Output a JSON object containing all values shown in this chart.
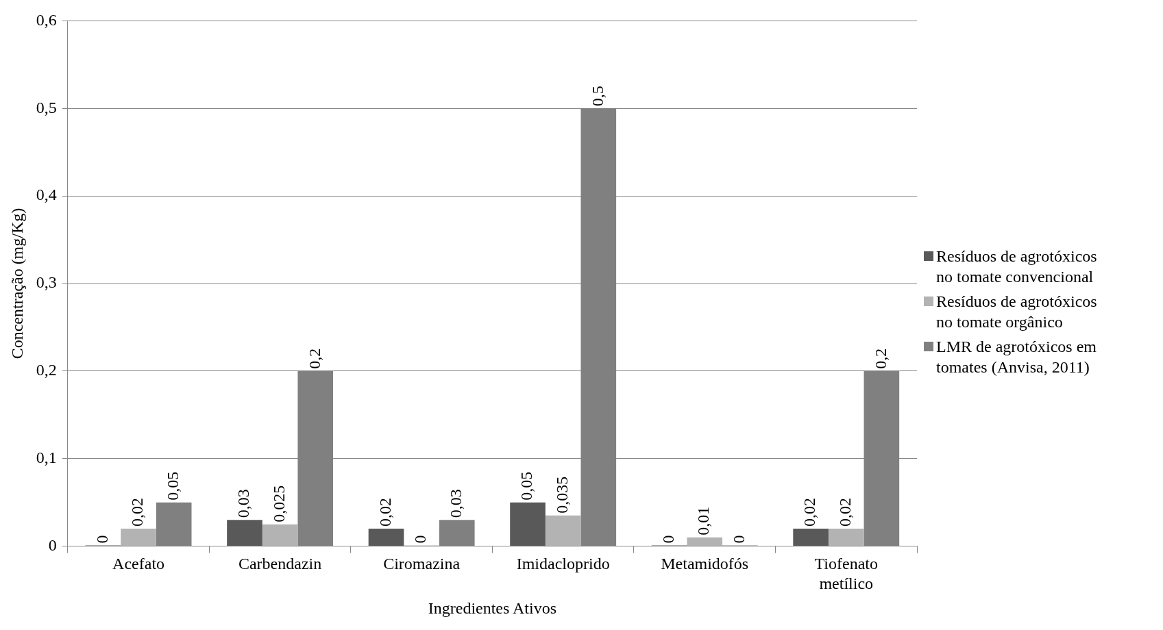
{
  "chart_data": {
    "type": "bar",
    "xlabel": "Ingredientes Ativos",
    "ylabel": "Concentração (mg/Kg)",
    "categories": [
      "Acefato",
      "Carbendazin",
      "Ciromazina",
      "Imidacloprido",
      "Metamidofós",
      "Tiofenato metílico"
    ],
    "series": [
      {
        "name": "Resíduos de agrotóxicos no tomate convencional",
        "color": "#595959",
        "values": [
          0,
          0.03,
          0.02,
          0.05,
          0,
          0.02
        ],
        "value_labels": [
          "0",
          "0,03",
          "0,02",
          "0,05",
          "0",
          "0,02"
        ]
      },
      {
        "name": "Resíduos de agrotóxicos no tomate orgânico",
        "color": "#b3b3b3",
        "values": [
          0.02,
          0.025,
          0,
          0.035,
          0.01,
          0.02
        ],
        "value_labels": [
          "0,02",
          "0,025",
          "0",
          "0,035",
          "0,01",
          "0,02"
        ]
      },
      {
        "name": "LMR de agrotóxicos em tomates (Anvisa, 2011)",
        "color": "#808080",
        "values": [
          0.05,
          0.2,
          0.03,
          0.5,
          0,
          0.2
        ],
        "value_labels": [
          "0,05",
          "0,2",
          "0,03",
          "0,5",
          "0",
          "0,2"
        ]
      }
    ],
    "ylim": [
      0,
      0.6
    ],
    "yticks": [
      {
        "value": 0,
        "label": "0"
      },
      {
        "value": 0.1,
        "label": "0,1"
      },
      {
        "value": 0.2,
        "label": "0,2"
      },
      {
        "value": 0.3,
        "label": "0,3"
      },
      {
        "value": 0.4,
        "label": "0,4"
      },
      {
        "value": 0.5,
        "label": "0,5"
      },
      {
        "value": 0.6,
        "label": "0,6"
      }
    ],
    "grid": "y",
    "legend": "right"
  }
}
